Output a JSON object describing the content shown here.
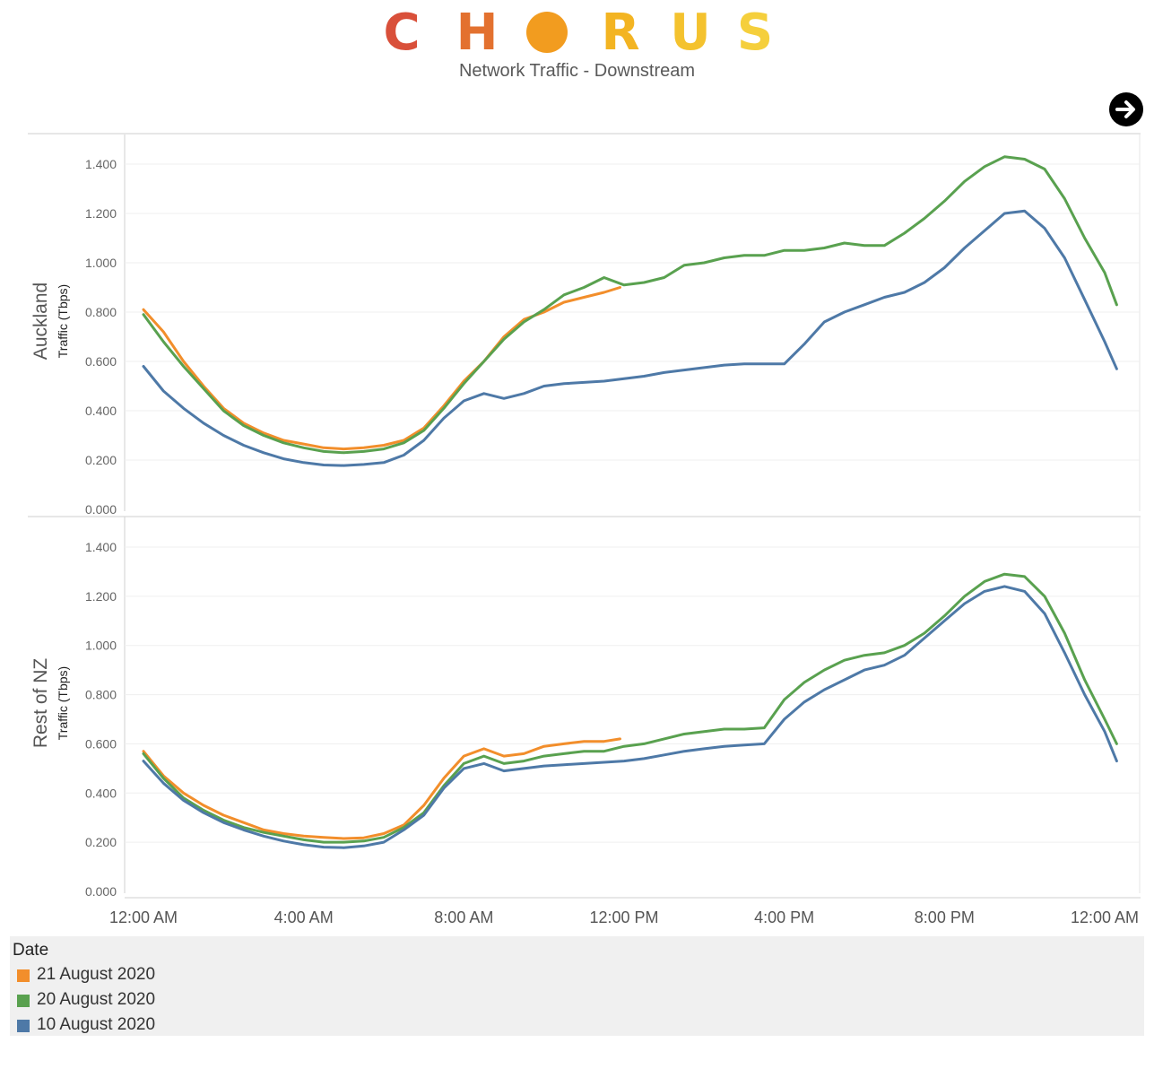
{
  "header": {
    "logo_letters": [
      "C",
      "H",
      "",
      "R",
      "U",
      "S"
    ],
    "logo_colors": [
      "#d9503a",
      "#e3712f",
      "#f29c1f",
      "#f3b422",
      "#f4c22e",
      "#f5cf3c"
    ],
    "subtitle": "Network Traffic - Downstream",
    "next_icon": "arrow-right-circle-icon"
  },
  "legend": {
    "title": "Date",
    "items": [
      {
        "label": "21 August 2020",
        "color": "#f28e2b"
      },
      {
        "label": "20 August 2020",
        "color": "#59a14f"
      },
      {
        "label": "10 August 2020",
        "color": "#4e79a7"
      }
    ]
  },
  "chart_data": [
    {
      "type": "line",
      "panel_label": "Auckland",
      "ylabel": "Traffic (Tbps)",
      "ylim": [
        0,
        1.5
      ],
      "yticks": [
        "0.000",
        "0.200",
        "0.400",
        "0.600",
        "0.800",
        "1.000",
        "1.200",
        "1.400"
      ],
      "xlim": [
        0,
        24
      ],
      "xticks": [
        {
          "x": 0,
          "label": "12:00 AM"
        },
        {
          "x": 4,
          "label": "4:00 AM"
        },
        {
          "x": 8,
          "label": "8:00 AM"
        },
        {
          "x": 12,
          "label": "12:00 PM"
        },
        {
          "x": 16,
          "label": "4:00 PM"
        },
        {
          "x": 20,
          "label": "8:00 PM"
        },
        {
          "x": 24,
          "label": "12:00 AM"
        }
      ],
      "grid": true,
      "series": [
        {
          "name": "21 August 2020",
          "color": "#f28e2b",
          "points": [
            [
              0,
              0.81
            ],
            [
              0.5,
              0.72
            ],
            [
              1,
              0.6
            ],
            [
              1.5,
              0.5
            ],
            [
              2,
              0.41
            ],
            [
              2.5,
              0.35
            ],
            [
              3,
              0.31
            ],
            [
              3.5,
              0.28
            ],
            [
              4,
              0.265
            ],
            [
              4.5,
              0.25
            ],
            [
              5,
              0.245
            ],
            [
              5.5,
              0.25
            ],
            [
              6,
              0.26
            ],
            [
              6.5,
              0.28
            ],
            [
              7,
              0.33
            ],
            [
              7.5,
              0.42
            ],
            [
              8,
              0.52
            ],
            [
              8.5,
              0.6
            ],
            [
              9,
              0.7
            ],
            [
              9.5,
              0.77
            ],
            [
              10,
              0.8
            ],
            [
              10.5,
              0.84
            ],
            [
              11,
              0.86
            ],
            [
              11.5,
              0.88
            ],
            [
              11.9,
              0.9
            ]
          ]
        },
        {
          "name": "20 August 2020",
          "color": "#59a14f",
          "points": [
            [
              0,
              0.79
            ],
            [
              0.5,
              0.68
            ],
            [
              1,
              0.58
            ],
            [
              1.5,
              0.49
            ],
            [
              2,
              0.4
            ],
            [
              2.5,
              0.34
            ],
            [
              3,
              0.3
            ],
            [
              3.5,
              0.27
            ],
            [
              4,
              0.25
            ],
            [
              4.5,
              0.235
            ],
            [
              5,
              0.23
            ],
            [
              5.5,
              0.235
            ],
            [
              6,
              0.245
            ],
            [
              6.5,
              0.27
            ],
            [
              7,
              0.32
            ],
            [
              7.5,
              0.41
            ],
            [
              8,
              0.51
            ],
            [
              8.5,
              0.6
            ],
            [
              9,
              0.69
            ],
            [
              9.5,
              0.76
            ],
            [
              10,
              0.81
            ],
            [
              10.5,
              0.87
            ],
            [
              11,
              0.9
            ],
            [
              11.5,
              0.94
            ],
            [
              12,
              0.91
            ],
            [
              12.5,
              0.92
            ],
            [
              13,
              0.94
            ],
            [
              13.5,
              0.99
            ],
            [
              14,
              1.0
            ],
            [
              14.5,
              1.02
            ],
            [
              15,
              1.03
            ],
            [
              15.5,
              1.03
            ],
            [
              16,
              1.05
            ],
            [
              16.5,
              1.05
            ],
            [
              17,
              1.06
            ],
            [
              17.5,
              1.08
            ],
            [
              18,
              1.07
            ],
            [
              18.5,
              1.07
            ],
            [
              19,
              1.12
            ],
            [
              19.5,
              1.18
            ],
            [
              20,
              1.25
            ],
            [
              20.5,
              1.33
            ],
            [
              21,
              1.39
            ],
            [
              21.5,
              1.43
            ],
            [
              22,
              1.42
            ],
            [
              22.5,
              1.38
            ],
            [
              23,
              1.26
            ],
            [
              23.5,
              1.1
            ],
            [
              24,
              0.96
            ],
            [
              24.3,
              0.83
            ]
          ]
        },
        {
          "name": "10 August 2020",
          "color": "#4e79a7",
          "points": [
            [
              0,
              0.58
            ],
            [
              0.5,
              0.48
            ],
            [
              1,
              0.41
            ],
            [
              1.5,
              0.35
            ],
            [
              2,
              0.3
            ],
            [
              2.5,
              0.26
            ],
            [
              3,
              0.23
            ],
            [
              3.5,
              0.205
            ],
            [
              4,
              0.19
            ],
            [
              4.5,
              0.18
            ],
            [
              5,
              0.178
            ],
            [
              5.5,
              0.182
            ],
            [
              6,
              0.19
            ],
            [
              6.5,
              0.22
            ],
            [
              7,
              0.28
            ],
            [
              7.5,
              0.37
            ],
            [
              8,
              0.44
            ],
            [
              8.5,
              0.47
            ],
            [
              9,
              0.45
            ],
            [
              9.5,
              0.47
            ],
            [
              10,
              0.5
            ],
            [
              10.5,
              0.51
            ],
            [
              11,
              0.515
            ],
            [
              11.5,
              0.52
            ],
            [
              12,
              0.53
            ],
            [
              12.5,
              0.54
            ],
            [
              13,
              0.555
            ],
            [
              13.5,
              0.565
            ],
            [
              14,
              0.575
            ],
            [
              14.5,
              0.585
            ],
            [
              15,
              0.59
            ],
            [
              15.5,
              0.59
            ],
            [
              16,
              0.59
            ],
            [
              16.5,
              0.67
            ],
            [
              17,
              0.76
            ],
            [
              17.5,
              0.8
            ],
            [
              18,
              0.83
            ],
            [
              18.5,
              0.86
            ],
            [
              19,
              0.88
            ],
            [
              19.5,
              0.92
            ],
            [
              20,
              0.98
            ],
            [
              20.5,
              1.06
            ],
            [
              21,
              1.13
            ],
            [
              21.5,
              1.2
            ],
            [
              22,
              1.21
            ],
            [
              22.5,
              1.14
            ],
            [
              23,
              1.02
            ],
            [
              23.5,
              0.85
            ],
            [
              24,
              0.68
            ],
            [
              24.3,
              0.57
            ]
          ]
        }
      ]
    },
    {
      "type": "line",
      "panel_label": "Rest of NZ",
      "ylabel": "Traffic (Tbps)",
      "ylim": [
        0,
        1.5
      ],
      "yticks": [
        "0.000",
        "0.200",
        "0.400",
        "0.600",
        "0.800",
        "1.000",
        "1.200",
        "1.400"
      ],
      "xlim": [
        0,
        24
      ],
      "xticks": [
        {
          "x": 0,
          "label": "12:00 AM"
        },
        {
          "x": 4,
          "label": "4:00 AM"
        },
        {
          "x": 8,
          "label": "8:00 AM"
        },
        {
          "x": 12,
          "label": "12:00 PM"
        },
        {
          "x": 16,
          "label": "4:00 PM"
        },
        {
          "x": 20,
          "label": "8:00 PM"
        },
        {
          "x": 24,
          "label": "12:00 AM"
        }
      ],
      "grid": true,
      "series": [
        {
          "name": "21 August 2020",
          "color": "#f28e2b",
          "points": [
            [
              0,
              0.57
            ],
            [
              0.5,
              0.47
            ],
            [
              1,
              0.4
            ],
            [
              1.5,
              0.35
            ],
            [
              2,
              0.31
            ],
            [
              2.5,
              0.28
            ],
            [
              3,
              0.25
            ],
            [
              3.5,
              0.235
            ],
            [
              4,
              0.225
            ],
            [
              4.5,
              0.22
            ],
            [
              5,
              0.215
            ],
            [
              5.5,
              0.218
            ],
            [
              6,
              0.235
            ],
            [
              6.5,
              0.27
            ],
            [
              7,
              0.35
            ],
            [
              7.5,
              0.46
            ],
            [
              8,
              0.55
            ],
            [
              8.5,
              0.58
            ],
            [
              9,
              0.55
            ],
            [
              9.5,
              0.56
            ],
            [
              10,
              0.59
            ],
            [
              10.5,
              0.6
            ],
            [
              11,
              0.61
            ],
            [
              11.5,
              0.61
            ],
            [
              11.9,
              0.62
            ]
          ]
        },
        {
          "name": "20 August 2020",
          "color": "#59a14f",
          "points": [
            [
              0,
              0.56
            ],
            [
              0.5,
              0.46
            ],
            [
              1,
              0.38
            ],
            [
              1.5,
              0.33
            ],
            [
              2,
              0.29
            ],
            [
              2.5,
              0.26
            ],
            [
              3,
              0.24
            ],
            [
              3.5,
              0.225
            ],
            [
              4,
              0.21
            ],
            [
              4.5,
              0.2
            ],
            [
              5,
              0.2
            ],
            [
              5.5,
              0.205
            ],
            [
              6,
              0.22
            ],
            [
              6.5,
              0.26
            ],
            [
              7,
              0.32
            ],
            [
              7.5,
              0.43
            ],
            [
              8,
              0.52
            ],
            [
              8.5,
              0.55
            ],
            [
              9,
              0.52
            ],
            [
              9.5,
              0.53
            ],
            [
              10,
              0.55
            ],
            [
              10.5,
              0.56
            ],
            [
              11,
              0.57
            ],
            [
              11.5,
              0.57
            ],
            [
              12,
              0.59
            ],
            [
              12.5,
              0.6
            ],
            [
              13,
              0.62
            ],
            [
              13.5,
              0.64
            ],
            [
              14,
              0.65
            ],
            [
              14.5,
              0.66
            ],
            [
              15,
              0.66
            ],
            [
              15.5,
              0.665
            ],
            [
              16,
              0.78
            ],
            [
              16.5,
              0.85
            ],
            [
              17,
              0.9
            ],
            [
              17.5,
              0.94
            ],
            [
              18,
              0.96
            ],
            [
              18.5,
              0.97
            ],
            [
              19,
              1.0
            ],
            [
              19.5,
              1.05
            ],
            [
              20,
              1.12
            ],
            [
              20.5,
              1.2
            ],
            [
              21,
              1.26
            ],
            [
              21.5,
              1.29
            ],
            [
              22,
              1.28
            ],
            [
              22.5,
              1.2
            ],
            [
              23,
              1.05
            ],
            [
              23.5,
              0.86
            ],
            [
              24,
              0.7
            ],
            [
              24.3,
              0.6
            ]
          ]
        },
        {
          "name": "10 August 2020",
          "color": "#4e79a7",
          "points": [
            [
              0,
              0.53
            ],
            [
              0.5,
              0.44
            ],
            [
              1,
              0.37
            ],
            [
              1.5,
              0.32
            ],
            [
              2,
              0.28
            ],
            [
              2.5,
              0.25
            ],
            [
              3,
              0.225
            ],
            [
              3.5,
              0.205
            ],
            [
              4,
              0.19
            ],
            [
              4.5,
              0.18
            ],
            [
              5,
              0.178
            ],
            [
              5.5,
              0.185
            ],
            [
              6,
              0.2
            ],
            [
              6.5,
              0.25
            ],
            [
              7,
              0.31
            ],
            [
              7.5,
              0.42
            ],
            [
              8,
              0.5
            ],
            [
              8.5,
              0.52
            ],
            [
              9,
              0.49
            ],
            [
              9.5,
              0.5
            ],
            [
              10,
              0.51
            ],
            [
              10.5,
              0.515
            ],
            [
              11,
              0.52
            ],
            [
              11.5,
              0.525
            ],
            [
              12,
              0.53
            ],
            [
              12.5,
              0.54
            ],
            [
              13,
              0.555
            ],
            [
              13.5,
              0.57
            ],
            [
              14,
              0.58
            ],
            [
              14.5,
              0.59
            ],
            [
              15,
              0.595
            ],
            [
              15.5,
              0.6
            ],
            [
              16,
              0.7
            ],
            [
              16.5,
              0.77
            ],
            [
              17,
              0.82
            ],
            [
              17.5,
              0.86
            ],
            [
              18,
              0.9
            ],
            [
              18.5,
              0.92
            ],
            [
              19,
              0.96
            ],
            [
              19.5,
              1.03
            ],
            [
              20,
              1.1
            ],
            [
              20.5,
              1.17
            ],
            [
              21,
              1.22
            ],
            [
              21.5,
              1.24
            ],
            [
              22,
              1.22
            ],
            [
              22.5,
              1.13
            ],
            [
              23,
              0.97
            ],
            [
              23.5,
              0.8
            ],
            [
              24,
              0.65
            ],
            [
              24.3,
              0.53
            ]
          ]
        }
      ]
    }
  ]
}
